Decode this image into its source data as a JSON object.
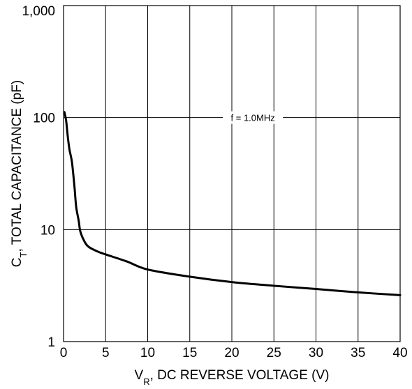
{
  "chart_data": {
    "type": "line",
    "title": "",
    "xlabel": {
      "main": "V",
      "sub": "R",
      "rest": ", DC REVERSE VOLTAGE (V)"
    },
    "ylabel": {
      "main": "C",
      "sub": "T",
      "rest": ", TOTAL CAPACITANCE (pF)"
    },
    "xlim": [
      0,
      40
    ],
    "ylim": [
      1,
      1000
    ],
    "yscale": "log",
    "grid": true,
    "x_ticks": [
      {
        "value": 0,
        "label": "0"
      },
      {
        "value": 5,
        "label": "5"
      },
      {
        "value": 10,
        "label": "10"
      },
      {
        "value": 15,
        "label": "15"
      },
      {
        "value": 20,
        "label": "20"
      },
      {
        "value": 25,
        "label": "25"
      },
      {
        "value": 30,
        "label": "30"
      },
      {
        "value": 35,
        "label": "35"
      },
      {
        "value": 40,
        "label": "40"
      }
    ],
    "y_ticks": [
      {
        "value": 1,
        "label": "1"
      },
      {
        "value": 10,
        "label": "10"
      },
      {
        "value": 100,
        "label": "100"
      },
      {
        "value": 1000,
        "label": "1,000"
      }
    ],
    "annotation": {
      "text": "f = 1.0MHz",
      "x": 22.5,
      "y": 100
    },
    "series": [
      {
        "color": "#000000",
        "x": [
          0.1,
          0.3,
          0.5,
          0.7,
          1.0,
          1.3,
          1.5,
          1.8,
          2.0,
          2.5,
          3.0,
          4.0,
          5.0,
          7.5,
          10,
          15,
          20,
          25,
          30,
          35,
          40
        ],
        "y": [
          112,
          95,
          68,
          52,
          40,
          24,
          16,
          12,
          9.6,
          7.8,
          7.0,
          6.4,
          6.0,
          5.2,
          4.4,
          3.8,
          3.4,
          3.15,
          2.95,
          2.75,
          2.6
        ]
      }
    ]
  }
}
